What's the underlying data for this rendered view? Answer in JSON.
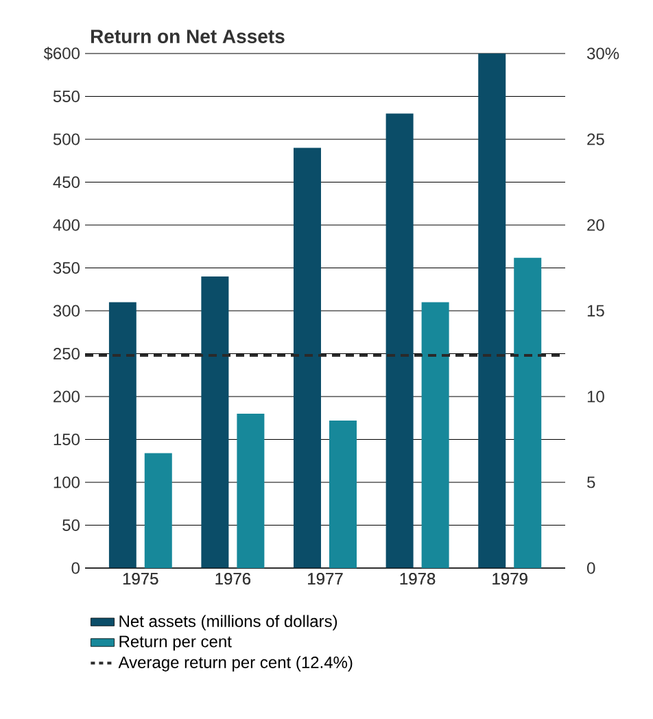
{
  "chart_data": {
    "type": "bar",
    "title": "Return on Net Assets",
    "categories": [
      "1975",
      "1976",
      "1977",
      "1978",
      "1979"
    ],
    "series": [
      {
        "name": "Net assets (millions of dollars)",
        "color": "#0b4d68",
        "values": [
          310,
          340,
          490,
          530,
          600
        ]
      },
      {
        "name": "Return per cent",
        "color": "#17889a",
        "values": [
          6.7,
          9.0,
          8.6,
          15.5,
          18.1
        ],
        "axis": "y2"
      }
    ],
    "ylim": [
      0,
      600
    ],
    "yticks": [
      0,
      50,
      100,
      150,
      200,
      250,
      300,
      350,
      400,
      450,
      500,
      550,
      {
        "value": 600,
        "label": "$600"
      }
    ],
    "y2lim": [
      0,
      30
    ],
    "y2ticks": [
      0,
      5,
      10,
      15,
      20,
      25,
      {
        "value": 30,
        "label": "30%"
      }
    ],
    "ref_lines": [
      {
        "axis": "y2",
        "value": 12.4,
        "label": "Average return per cent (12.4%)",
        "color": "#2a2a2a",
        "line_style": "dashed"
      }
    ],
    "grid": "y",
    "legend": "bottom"
  }
}
